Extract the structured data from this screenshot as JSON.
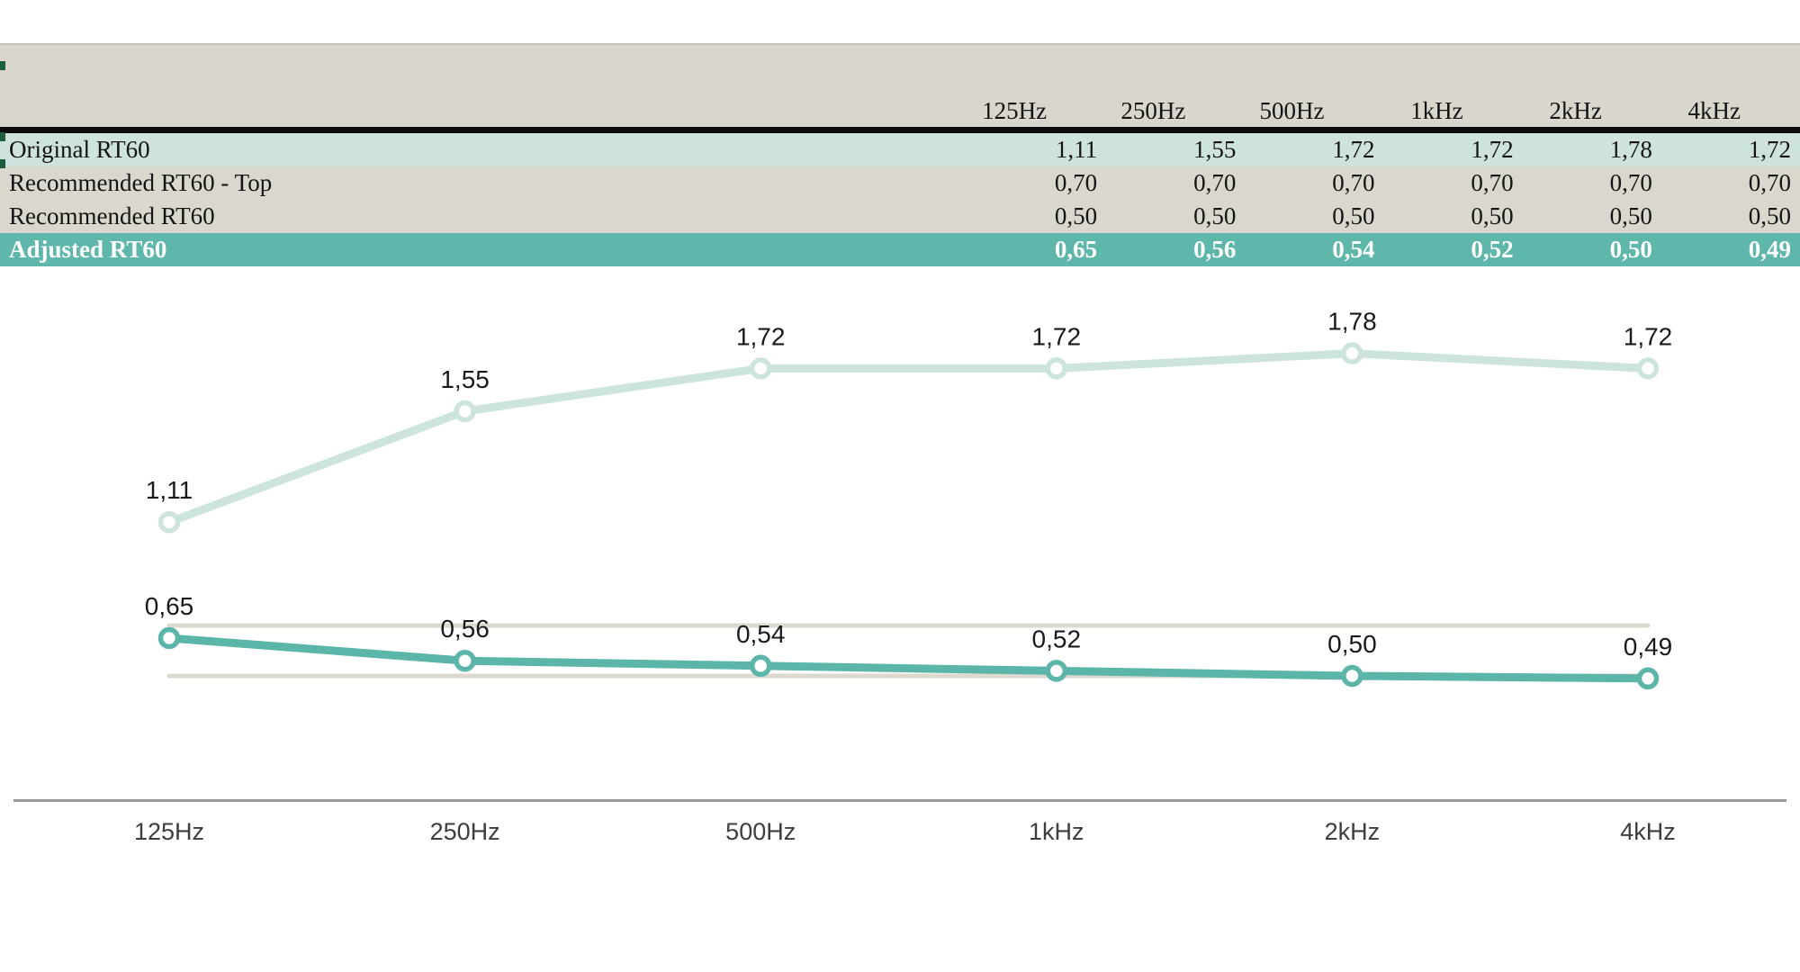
{
  "table": {
    "columns": [
      "125Hz",
      "250Hz",
      "500Hz",
      "1kHz",
      "2kHz",
      "4kHz"
    ],
    "rows": [
      {
        "label": "Original RT60",
        "style": "light",
        "values": [
          "1,11",
          "1,55",
          "1,72",
          "1,72",
          "1,78",
          "1,72"
        ]
      },
      {
        "label": "Recommended RT60 - Top",
        "style": "plain",
        "values": [
          "0,70",
          "0,70",
          "0,70",
          "0,70",
          "0,70",
          "0,70"
        ]
      },
      {
        "label": "Recommended RT60",
        "style": "plain",
        "values": [
          "0,50",
          "0,50",
          "0,50",
          "0,50",
          "0,50",
          "0,50"
        ]
      },
      {
        "label": "Adjusted RT60",
        "style": "teal",
        "values": [
          "0,65",
          "0,56",
          "0,54",
          "0,52",
          "0,50",
          "0,49"
        ]
      }
    ]
  },
  "chart_data": {
    "type": "line",
    "categories": [
      "125Hz",
      "250Hz",
      "500Hz",
      "1kHz",
      "2kHz",
      "4kHz"
    ],
    "series": [
      {
        "name": "Recommended RT60 - Top",
        "values": [
          0.7,
          0.7,
          0.7,
          0.7,
          0.7,
          0.7
        ],
        "color": "#ddd9cf",
        "markers": false
      },
      {
        "name": "Recommended RT60",
        "values": [
          0.5,
          0.5,
          0.5,
          0.5,
          0.5,
          0.5
        ],
        "color": "#ddd9cf",
        "markers": false
      },
      {
        "name": "Original RT60",
        "values": [
          1.11,
          1.55,
          1.72,
          1.72,
          1.78,
          1.72
        ],
        "color": "#cde4de",
        "markers": true,
        "data_labels": [
          "1,11",
          "1,55",
          "1,72",
          "1,72",
          "1,78",
          "1,72"
        ]
      },
      {
        "name": "Adjusted RT60",
        "values": [
          0.65,
          0.56,
          0.54,
          0.52,
          0.5,
          0.49
        ],
        "color": "#5cb5a9",
        "markers": true,
        "data_labels": [
          "0,65",
          "0,56",
          "0,54",
          "0,52",
          "0,50",
          "0,49"
        ]
      }
    ],
    "title": "",
    "xlabel": "",
    "ylabel": "",
    "ylim": [
      0.35,
      2.0
    ],
    "grid": "off",
    "legend": "none",
    "decimal_separator": ",",
    "marker_style": "open-circle",
    "axis_color": "#9a9a9a",
    "label_color": "#1a1a1a"
  },
  "colors": {
    "header_band": "#d9d6cd",
    "row_light": "#cee2de",
    "row_plain": "#dad7ce",
    "row_teal": "#5fb7ab",
    "black_rule": "#0c0c0c",
    "selection_mark": "#1c5f3c"
  }
}
